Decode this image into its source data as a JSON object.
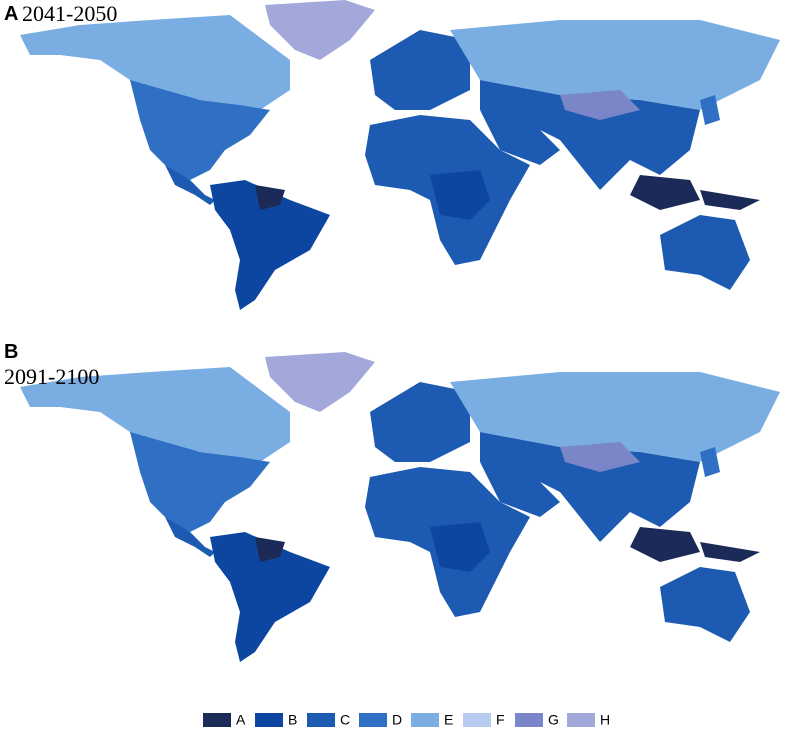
{
  "panels": [
    {
      "label": "A",
      "period": "2041-2050"
    },
    {
      "label": "B",
      "period": "2091-2100"
    }
  ],
  "legend": [
    {
      "label": "A",
      "color": "#1b2a57"
    },
    {
      "label": "B",
      "color": "#0d46a0"
    },
    {
      "label": "C",
      "color": "#1d5bb2"
    },
    {
      "label": "D",
      "color": "#2f70c4"
    },
    {
      "label": "E",
      "color": "#7aaee2"
    },
    {
      "label": "F",
      "color": "#b7ccee"
    },
    {
      "label": "G",
      "color": "#7a86c8"
    },
    {
      "label": "H",
      "color": "#a2a9da"
    }
  ]
}
